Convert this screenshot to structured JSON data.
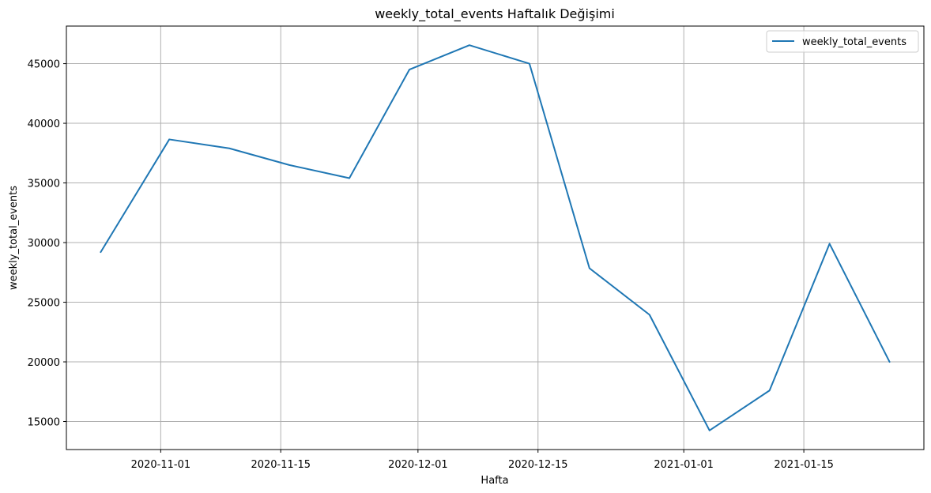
{
  "chart_data": {
    "type": "line",
    "title": "weekly_total_events Haftalık Değişimi",
    "xlabel": "Hafta",
    "ylabel": "weekly_total_events",
    "x": [
      "2020-10-25",
      "2020-11-02",
      "2020-11-09",
      "2020-11-16",
      "2020-11-23",
      "2020-11-30",
      "2020-12-07",
      "2020-12-14",
      "2020-12-21",
      "2020-12-28",
      "2021-01-04",
      "2021-01-11",
      "2021-01-18",
      "2021-01-25"
    ],
    "series": [
      {
        "name": "weekly_total_events",
        "color": "#1f77b4",
        "values": [
          29200,
          38650,
          37900,
          36500,
          35400,
          44500,
          46550,
          45000,
          27850,
          23950,
          14250,
          17600,
          29900,
          20000
        ]
      }
    ],
    "xlim": [
      "2020-10-21",
      "2021-01-29"
    ],
    "ylim": [
      12650,
      48150
    ],
    "x_ticks": [
      "2020-11-01",
      "2020-11-15",
      "2020-12-01",
      "2020-12-15",
      "2021-01-01",
      "2021-01-15"
    ],
    "y_ticks": [
      15000,
      20000,
      25000,
      30000,
      35000,
      40000,
      45000
    ],
    "grid": true,
    "legend_position": "upper right"
  }
}
